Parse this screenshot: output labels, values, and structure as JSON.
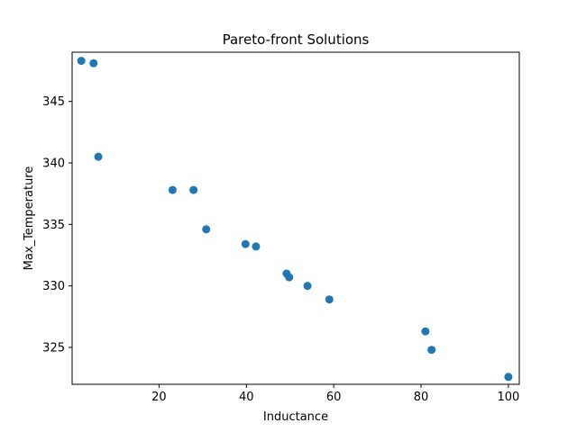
{
  "chart_data": {
    "type": "scatter",
    "title": "Pareto-front Solutions",
    "xlabel": "Inductance",
    "ylabel": "Max_Temperature",
    "xlim": [
      0.1,
      102.5
    ],
    "ylim": [
      322.0,
      349.0
    ],
    "xticks": [
      20,
      40,
      60,
      80,
      100
    ],
    "xtick_labels": [
      "20",
      "40",
      "60",
      "80",
      "100"
    ],
    "yticks": [
      325,
      330,
      335,
      340,
      345
    ],
    "ytick_labels": [
      "325",
      "330",
      "335",
      "340",
      "345"
    ],
    "grid": false,
    "legend": "none",
    "marker_color": "#1f77b4",
    "series": [
      {
        "points": [
          {
            "x": 2.2,
            "y": 348.3
          },
          {
            "x": 5.0,
            "y": 348.1
          },
          {
            "x": 6.1,
            "y": 340.5
          },
          {
            "x": 23.1,
            "y": 337.8
          },
          {
            "x": 27.9,
            "y": 337.8
          },
          {
            "x": 30.8,
            "y": 334.6
          },
          {
            "x": 39.8,
            "y": 333.4
          },
          {
            "x": 42.2,
            "y": 333.2
          },
          {
            "x": 49.2,
            "y": 331.0
          },
          {
            "x": 49.8,
            "y": 330.7
          },
          {
            "x": 54.0,
            "y": 330.0
          },
          {
            "x": 59.0,
            "y": 328.9
          },
          {
            "x": 81.0,
            "y": 326.3
          },
          {
            "x": 82.4,
            "y": 324.8
          },
          {
            "x": 100.0,
            "y": 322.6
          }
        ]
      }
    ]
  }
}
